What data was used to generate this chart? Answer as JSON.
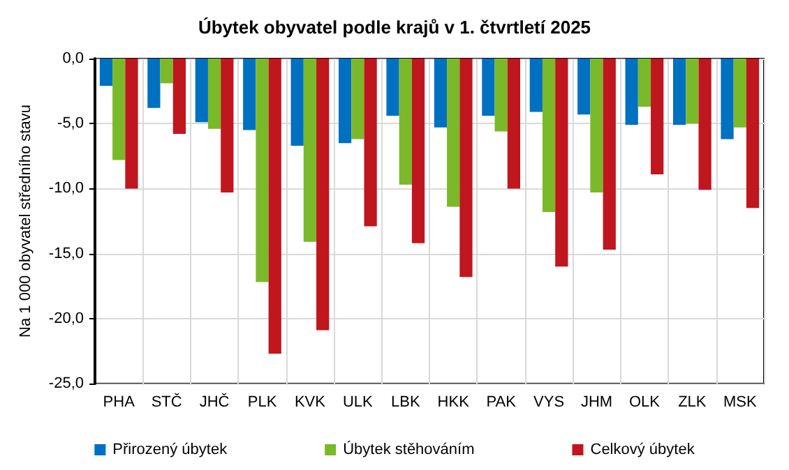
{
  "chart_data": {
    "type": "bar",
    "title": "Úbytek obyvatel podle krajů v 1. čtvrtletí 2025",
    "ylabel": "Na 1 000 obyvatel středního stavu",
    "categories": [
      "PHA",
      "STČ",
      "JHČ",
      "PLK",
      "KVK",
      "ULK",
      "LBK",
      "HKK",
      "PAK",
      "VYS",
      "JHM",
      "OLK",
      "ZLK",
      "MSK"
    ],
    "series": [
      {
        "name": "Přirozený úbytek",
        "color": "#0070c0",
        "values": [
          -2.1,
          -3.8,
          -4.9,
          -5.5,
          -6.7,
          -6.5,
          -4.4,
          -5.3,
          -4.4,
          -4.1,
          -4.3,
          -5.1,
          -5.1,
          -6.2
        ]
      },
      {
        "name": "Úbytek stěhováním",
        "color": "#7ab929",
        "values": [
          -7.8,
          -1.9,
          -5.4,
          -17.2,
          -14.1,
          -6.2,
          -9.7,
          -11.4,
          -5.6,
          -11.8,
          -10.3,
          -3.7,
          -5.0,
          -5.3
        ]
      },
      {
        "name": "Celkový úbytek",
        "color": "#c0161e",
        "values": [
          -10.0,
          -5.8,
          -10.3,
          -22.7,
          -20.9,
          -12.9,
          -14.2,
          -16.8,
          -10.0,
          -16.0,
          -14.7,
          -8.9,
          -10.1,
          -11.5
        ]
      }
    ],
    "ylim": [
      -25,
      0
    ],
    "yticks": [
      {
        "value": -25,
        "label": "-25,0"
      },
      {
        "value": -20,
        "label": "-20,0"
      },
      {
        "value": -15,
        "label": "-15,0"
      },
      {
        "value": -10,
        "label": "-10,0"
      },
      {
        "value": -5,
        "label": "-5,0"
      },
      {
        "value": 0,
        "label": "0,0"
      }
    ],
    "grid": true,
    "legend": "bottom"
  }
}
